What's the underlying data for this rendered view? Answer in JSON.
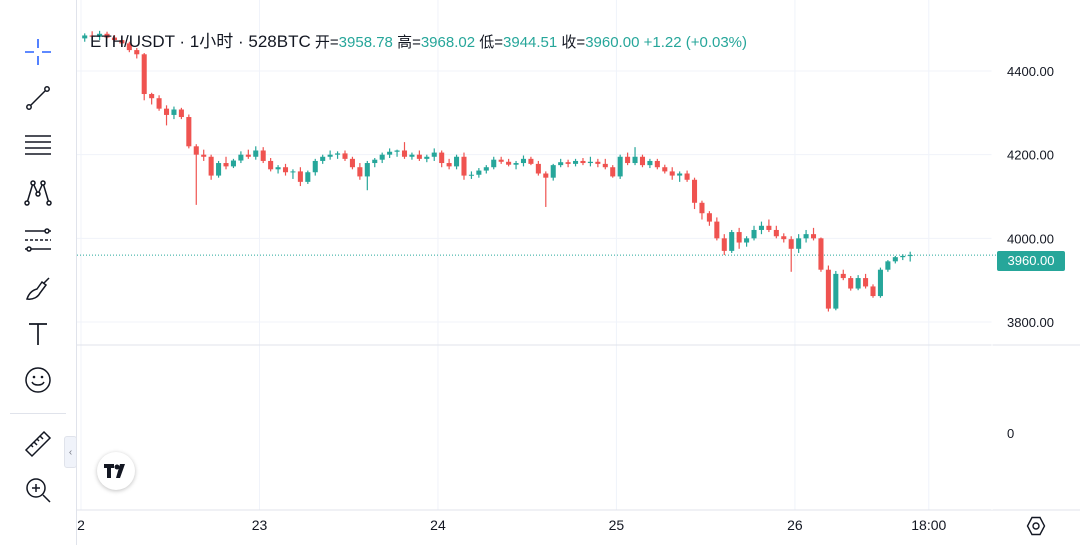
{
  "toolbar": {
    "tools": [
      {
        "name": "crosshair-icon"
      },
      {
        "name": "trend-line-icon"
      },
      {
        "name": "horizontal-lines-icon"
      },
      {
        "name": "pattern-icon"
      },
      {
        "name": "fib-retracement-icon"
      },
      {
        "name": "brush-icon"
      },
      {
        "name": "text-icon"
      },
      {
        "name": "emoji-icon"
      },
      {
        "name": "ruler-icon"
      },
      {
        "name": "zoom-in-icon"
      }
    ],
    "collapse_glyph": "‹"
  },
  "legend": {
    "symbol": "ETH/USDT · 1小时 · 528BTC",
    "open_label": "开=",
    "open": "3958.78",
    "high_label": "高=",
    "high": "3968.02",
    "low_label": "低=",
    "low": "3944.51",
    "close_label": "收=",
    "close": "3960.00",
    "change": "+1.22 (+0.03%)"
  },
  "price_tag": "3960.00",
  "colors": {
    "up": "#26a69a",
    "down": "#ef5350",
    "grid": "#f0f3fa",
    "axis_text": "#131722"
  },
  "chart_data": {
    "type": "candlestick",
    "symbol": "ETH/USDT",
    "interval": "1小时",
    "ylim": [
      3745,
      4510
    ],
    "y_ticks": [
      4400,
      4200,
      4000,
      3800
    ],
    "y_tick_labels": [
      "4400.00",
      "4200.00",
      "4000.00",
      "3800.00"
    ],
    "volume_axis_label": "0",
    "x_ticks": [
      {
        "t": 0,
        "label": "2"
      },
      {
        "t": 24,
        "label": "23"
      },
      {
        "t": 48,
        "label": "24"
      },
      {
        "t": 72,
        "label": "25"
      },
      {
        "t": 96,
        "label": "26"
      },
      {
        "t": 114,
        "label": "18:00"
      }
    ],
    "last_price": 3960.0,
    "candles": [
      [
        4478,
        4490,
        4470,
        4485
      ],
      [
        4485,
        4495,
        4476,
        4482
      ],
      [
        4482,
        4496,
        4474,
        4489
      ],
      [
        4489,
        4494,
        4478,
        4480
      ],
      [
        4480,
        4486,
        4470,
        4474
      ],
      [
        4474,
        4480,
        4462,
        4466
      ],
      [
        4466,
        4470,
        4445,
        4450
      ],
      [
        4450,
        4455,
        4430,
        4440
      ],
      [
        4440,
        4443,
        4330,
        4345
      ],
      [
        4345,
        4348,
        4320,
        4335
      ],
      [
        4335,
        4342,
        4305,
        4310
      ],
      [
        4310,
        4318,
        4270,
        4295
      ],
      [
        4295,
        4315,
        4285,
        4308
      ],
      [
        4308,
        4312,
        4285,
        4290
      ],
      [
        4290,
        4296,
        4215,
        4220
      ],
      [
        4220,
        4225,
        4080,
        4200
      ],
      [
        4200,
        4212,
        4185,
        4195
      ],
      [
        4195,
        4200,
        4140,
        4150
      ],
      [
        4150,
        4185,
        4145,
        4180
      ],
      [
        4180,
        4195,
        4165,
        4172
      ],
      [
        4172,
        4190,
        4168,
        4186
      ],
      [
        4186,
        4208,
        4180,
        4200
      ],
      [
        4200,
        4212,
        4190,
        4195
      ],
      [
        4195,
        4220,
        4188,
        4210
      ],
      [
        4210,
        4218,
        4180,
        4185
      ],
      [
        4185,
        4192,
        4160,
        4165
      ],
      [
        4165,
        4175,
        4155,
        4170
      ],
      [
        4170,
        4178,
        4150,
        4158
      ],
      [
        4158,
        4165,
        4142,
        4160
      ],
      [
        4160,
        4170,
        4125,
        4135
      ],
      [
        4135,
        4162,
        4130,
        4158
      ],
      [
        4158,
        4190,
        4150,
        4185
      ],
      [
        4185,
        4200,
        4178,
        4195
      ],
      [
        4195,
        4210,
        4188,
        4200
      ],
      [
        4200,
        4208,
        4190,
        4203
      ],
      [
        4203,
        4210,
        4185,
        4190
      ],
      [
        4190,
        4195,
        4165,
        4170
      ],
      [
        4170,
        4180,
        4140,
        4148
      ],
      [
        4148,
        4185,
        4115,
        4180
      ],
      [
        4180,
        4192,
        4170,
        4188
      ],
      [
        4188,
        4205,
        4180,
        4200
      ],
      [
        4200,
        4215,
        4192,
        4207
      ],
      [
        4207,
        4212,
        4195,
        4210
      ],
      [
        4210,
        4230,
        4190,
        4195
      ],
      [
        4195,
        4205,
        4188,
        4200
      ],
      [
        4200,
        4210,
        4185,
        4190
      ],
      [
        4190,
        4200,
        4182,
        4195
      ],
      [
        4195,
        4215,
        4185,
        4205
      ],
      [
        4205,
        4210,
        4170,
        4180
      ],
      [
        4180,
        4190,
        4165,
        4172
      ],
      [
        4172,
        4200,
        4165,
        4195
      ],
      [
        4195,
        4205,
        4140,
        4150
      ],
      [
        4150,
        4160,
        4142,
        4152
      ],
      [
        4152,
        4168,
        4145,
        4162
      ],
      [
        4162,
        4175,
        4155,
        4170
      ],
      [
        4170,
        4195,
        4165,
        4188
      ],
      [
        4188,
        4195,
        4178,
        4183
      ],
      [
        4183,
        4190,
        4172,
        4176
      ],
      [
        4176,
        4185,
        4165,
        4180
      ],
      [
        4180,
        4198,
        4172,
        4190
      ],
      [
        4190,
        4195,
        4175,
        4178
      ],
      [
        4178,
        4185,
        4150,
        4155
      ],
      [
        4155,
        4160,
        4075,
        4145
      ],
      [
        4145,
        4178,
        4138,
        4175
      ],
      [
        4175,
        4190,
        4170,
        4182
      ],
      [
        4182,
        4188,
        4170,
        4178
      ],
      [
        4178,
        4190,
        4172,
        4185
      ],
      [
        4185,
        4192,
        4175,
        4180
      ],
      [
        4180,
        4195,
        4172,
        4183
      ],
      [
        4183,
        4190,
        4170,
        4178
      ],
      [
        4178,
        4190,
        4165,
        4170
      ],
      [
        4170,
        4175,
        4145,
        4148
      ],
      [
        4148,
        4200,
        4142,
        4195
      ],
      [
        4195,
        4205,
        4175,
        4180
      ],
      [
        4180,
        4218,
        4175,
        4195
      ],
      [
        4195,
        4200,
        4170,
        4175
      ],
      [
        4175,
        4190,
        4168,
        4185
      ],
      [
        4185,
        4190,
        4165,
        4170
      ],
      [
        4170,
        4176,
        4155,
        4160
      ],
      [
        4160,
        4170,
        4140,
        4150
      ],
      [
        4150,
        4160,
        4135,
        4155
      ],
      [
        4155,
        4162,
        4135,
        4140
      ],
      [
        4140,
        4145,
        4070,
        4085
      ],
      [
        4085,
        4090,
        4045,
        4060
      ],
      [
        4060,
        4065,
        4030,
        4040
      ],
      [
        4040,
        4050,
        3995,
        4000
      ],
      [
        4000,
        4010,
        3960,
        3970
      ],
      [
        3970,
        4020,
        3965,
        4015
      ],
      [
        4015,
        4025,
        3975,
        3990
      ],
      [
        3990,
        4005,
        3980,
        4000
      ],
      [
        4000,
        4030,
        3995,
        4020
      ],
      [
        4020,
        4040,
        4010,
        4030
      ],
      [
        4030,
        4045,
        4015,
        4020
      ],
      [
        4020,
        4030,
        4000,
        4005
      ],
      [
        4005,
        4012,
        3990,
        3998
      ],
      [
        3998,
        4005,
        3920,
        3975
      ],
      [
        3975,
        4010,
        3965,
        4000
      ],
      [
        4000,
        4020,
        3990,
        4010
      ],
      [
        4010,
        4025,
        3995,
        4000
      ],
      [
        4000,
        4002,
        3920,
        3925
      ],
      [
        3925,
        3935,
        3825,
        3832
      ],
      [
        3832,
        3922,
        3828,
        3915
      ],
      [
        3915,
        3925,
        3900,
        3905
      ],
      [
        3905,
        3910,
        3875,
        3880
      ],
      [
        3880,
        3912,
        3876,
        3905
      ],
      [
        3905,
        3915,
        3880,
        3885
      ],
      [
        3885,
        3890,
        3858,
        3862
      ],
      [
        3862,
        3930,
        3858,
        3925
      ],
      [
        3925,
        3948,
        3920,
        3945
      ],
      [
        3945,
        3958,
        3940,
        3955
      ],
      [
        3955,
        3962,
        3948,
        3958
      ],
      [
        3958.78,
        3968.02,
        3944.51,
        3960.0
      ]
    ]
  }
}
